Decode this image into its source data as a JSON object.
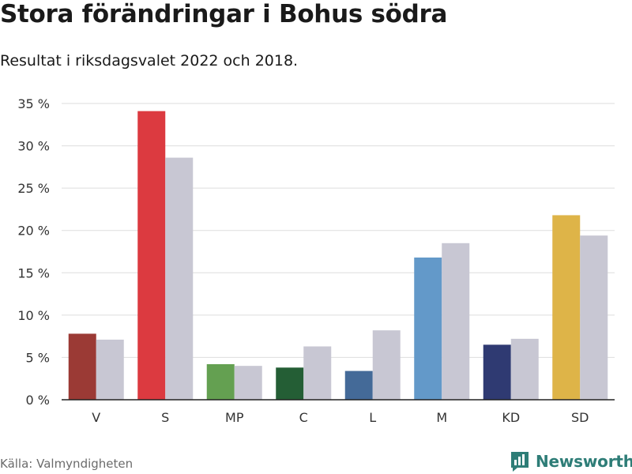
{
  "title": "Stora förändringar i Bohus södra",
  "subtitle": "Resultat i riksdagsvalet 2022 och 2018.",
  "source": "Källa: Valmyndigheten",
  "brand": "Newsworthy",
  "brand_icon": "bar-chart-logo-icon",
  "colors": {
    "brand": "#2e7d77",
    "previous_year": "#c8c7d3",
    "grid": "#dddddd",
    "axis": "#222222"
  },
  "chart_data": {
    "type": "bar",
    "categories": [
      "V",
      "S",
      "MP",
      "C",
      "L",
      "M",
      "KD",
      "SD"
    ],
    "series": [
      {
        "values": [
          7.8,
          34.1,
          4.2,
          3.8,
          3.4,
          16.8,
          6.5,
          21.8
        ],
        "colors": [
          "#9b3a35",
          "#dc3a40",
          "#64a051",
          "#245e35",
          "#446a98",
          "#6399c9",
          "#2f3a72",
          "#deb448"
        ]
      },
      {
        "values": [
          7.1,
          28.6,
          4.0,
          6.3,
          8.2,
          18.5,
          7.2,
          19.4
        ],
        "color": "#c8c7d3"
      }
    ],
    "ylim": [
      0,
      35
    ],
    "yticks": [
      0,
      5,
      10,
      15,
      20,
      25,
      30,
      35
    ],
    "ytick_labels": [
      "0 %",
      "5 %",
      "10 %",
      "15 %",
      "20 %",
      "25 %",
      "30 %",
      "35 %"
    ],
    "grid": true,
    "legend": "none"
  }
}
